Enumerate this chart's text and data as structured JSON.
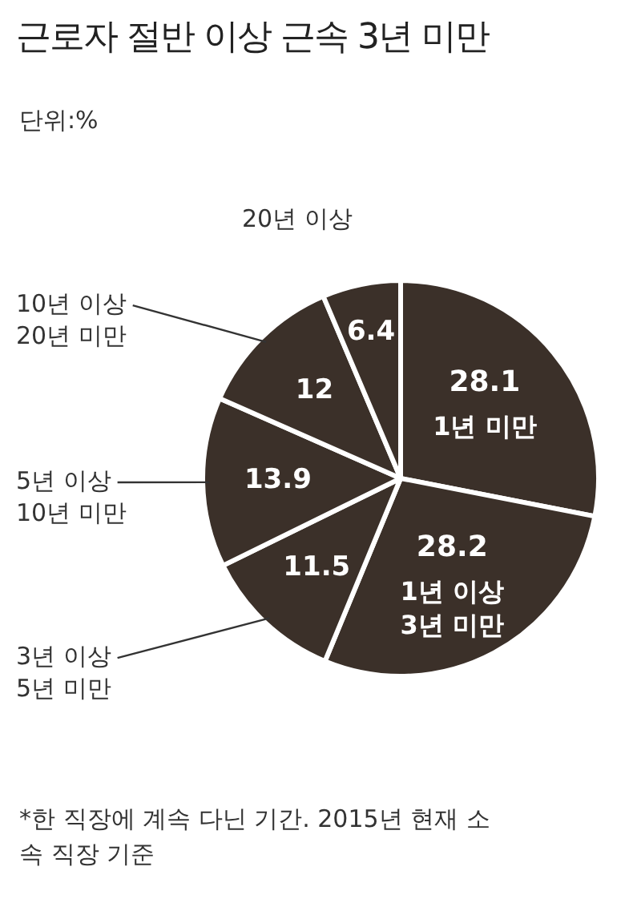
{
  "chart_data": {
    "type": "pie",
    "title": "근로자 절반 이상 근속 3년 미만",
    "subtitle": "단위:%",
    "categories": [
      "1년 미만",
      "1년 이상 3년 미만",
      "3년 이상 5년 미만",
      "5년 이상 10년 미만",
      "10년 이상 20년 미만",
      "20년 이상"
    ],
    "values": [
      28.1,
      28.2,
      11.5,
      13.9,
      12,
      6.4
    ],
    "colors": [
      "#3b3029",
      "#3b3029",
      "#3b3029",
      "#3b3029",
      "#3b3029",
      "#3b3029"
    ],
    "data_labels": true,
    "annotations": [
      "*한 직장에 계속 다닌 기간.  2015년 현재 소속  직장 기준"
    ]
  }
}
